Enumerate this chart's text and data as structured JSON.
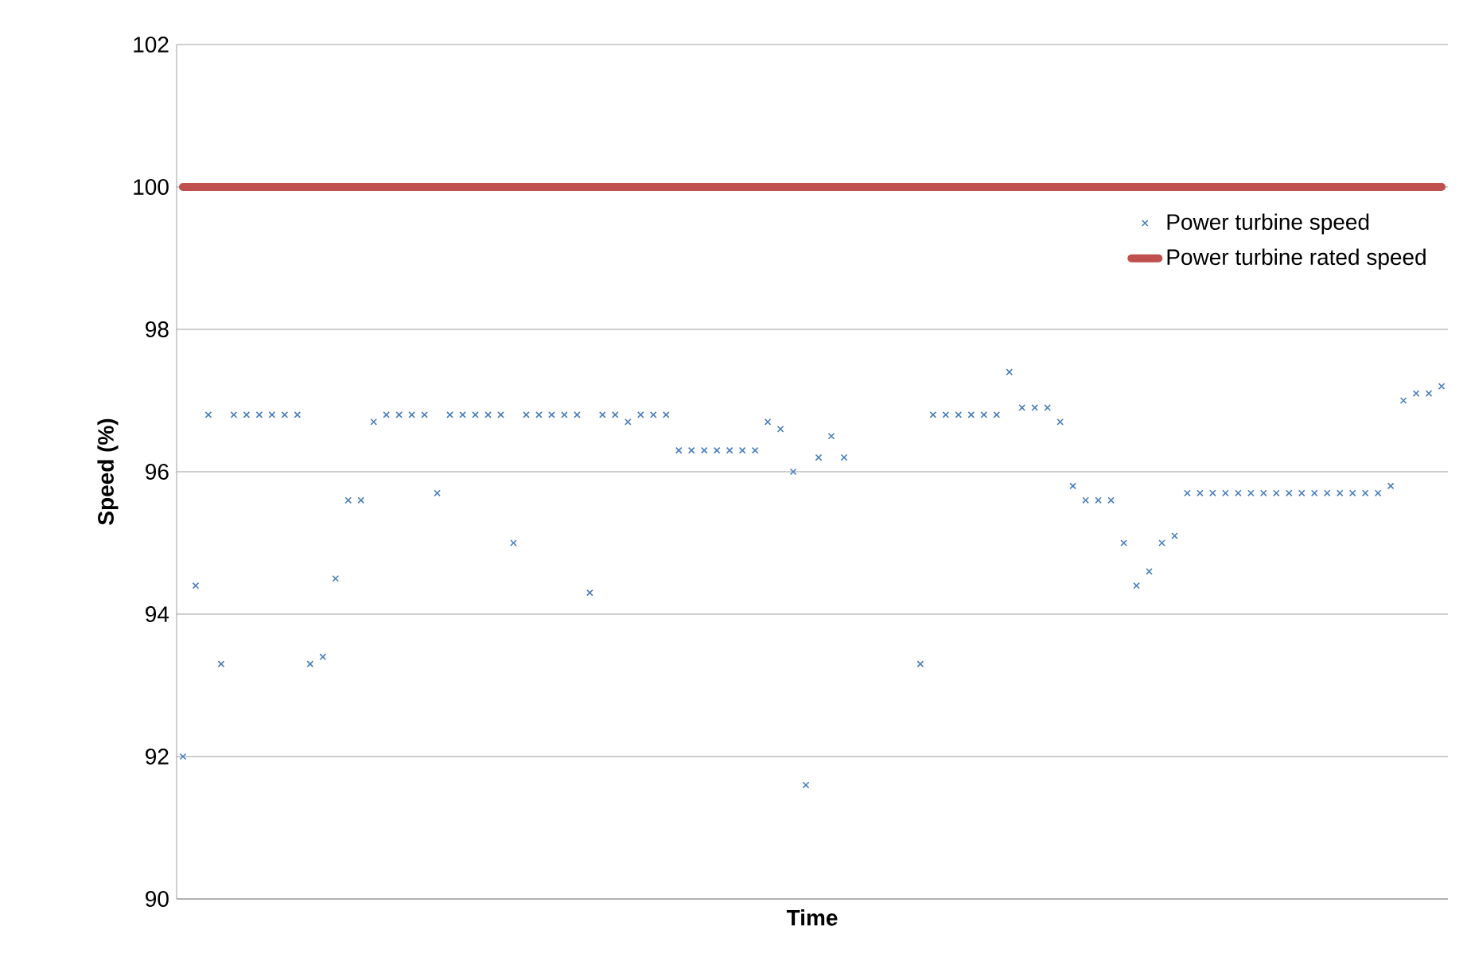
{
  "chart_data": {
    "type": "scatter",
    "xlabel": "Time",
    "ylabel": "Speed (%)",
    "categories": [
      null,
      null,
      null,
      null,
      null,
      null,
      null,
      null,
      null,
      null,
      null,
      null,
      null,
      null,
      null,
      null,
      null,
      null,
      null,
      null,
      null,
      null,
      null,
      null,
      null,
      null,
      null,
      null,
      null,
      null,
      null,
      null,
      null,
      null,
      null,
      null,
      null,
      null,
      null,
      null,
      null,
      null,
      null,
      null,
      null,
      null,
      null,
      null,
      null,
      null,
      null,
      null,
      null,
      null,
      null,
      null,
      null,
      null,
      null,
      null,
      null,
      null,
      null,
      null,
      null,
      null,
      null,
      null,
      null,
      null,
      null,
      null,
      null,
      null,
      null,
      null,
      null,
      null,
      null,
      null,
      null,
      null,
      null,
      null,
      null,
      null,
      null,
      null,
      null,
      null,
      null,
      null,
      null,
      null,
      null,
      null,
      null,
      null,
      null,
      null
    ],
    "series": [
      {
        "name": "Power turbine speed",
        "marker": "cross",
        "color": "#4a7ebb",
        "values": [
          92.0,
          94.4,
          96.8,
          93.3,
          96.8,
          96.8,
          96.8,
          96.8,
          96.8,
          96.8,
          93.3,
          93.4,
          94.5,
          95.6,
          95.6,
          96.7,
          96.8,
          96.8,
          96.8,
          96.8,
          95.7,
          96.8,
          96.8,
          96.8,
          96.8,
          96.8,
          95.0,
          96.8,
          96.8,
          96.8,
          96.8,
          96.8,
          94.3,
          96.8,
          96.8,
          96.7,
          96.8,
          96.8,
          96.8,
          96.3,
          96.3,
          96.3,
          96.3,
          96.3,
          96.3,
          96.3,
          96.7,
          96.6,
          96.0,
          91.6,
          96.2,
          96.5,
          96.2,
          null,
          null,
          null,
          null,
          null,
          93.3,
          96.8,
          96.8,
          96.8,
          96.8,
          96.8,
          96.8,
          97.4,
          96.9,
          96.9,
          96.9,
          96.7,
          95.8,
          95.6,
          95.6,
          95.6,
          95.0,
          94.4,
          94.6,
          95.0,
          95.1,
          95.7,
          95.7,
          95.7,
          95.7,
          95.7,
          95.7,
          95.7,
          95.7,
          95.7,
          95.7,
          95.7,
          95.7,
          95.7,
          95.7,
          95.7,
          95.7,
          95.8,
          97.0,
          97.1,
          97.1,
          97.2
        ]
      },
      {
        "name": "Power turbine rated speed",
        "type": "line",
        "marker": "none",
        "color": "#c0504d",
        "values": [
          100,
          100,
          100,
          100,
          100,
          100,
          100,
          100,
          100,
          100,
          100,
          100,
          100,
          100,
          100,
          100,
          100,
          100,
          100,
          100,
          100,
          100,
          100,
          100,
          100,
          100,
          100,
          100,
          100,
          100,
          100,
          100,
          100,
          100,
          100,
          100,
          100,
          100,
          100,
          100,
          100,
          100,
          100,
          100,
          100,
          100,
          100,
          100,
          100,
          100,
          100,
          100,
          100,
          100,
          100,
          100,
          100,
          100,
          100,
          100,
          100,
          100,
          100,
          100,
          100,
          100,
          100,
          100,
          100,
          100,
          100,
          100,
          100,
          100,
          100,
          100,
          100,
          100,
          100,
          100,
          100,
          100,
          100,
          100,
          100,
          100,
          100,
          100,
          100,
          100,
          100,
          100,
          100,
          100,
          100,
          100,
          100,
          100,
          100,
          100
        ]
      }
    ],
    "ylim": [
      90,
      102
    ],
    "yticks": [
      90,
      92,
      94,
      96,
      98,
      100,
      102
    ],
    "grid": "y",
    "legend": "top right",
    "tick_labels": "y"
  }
}
